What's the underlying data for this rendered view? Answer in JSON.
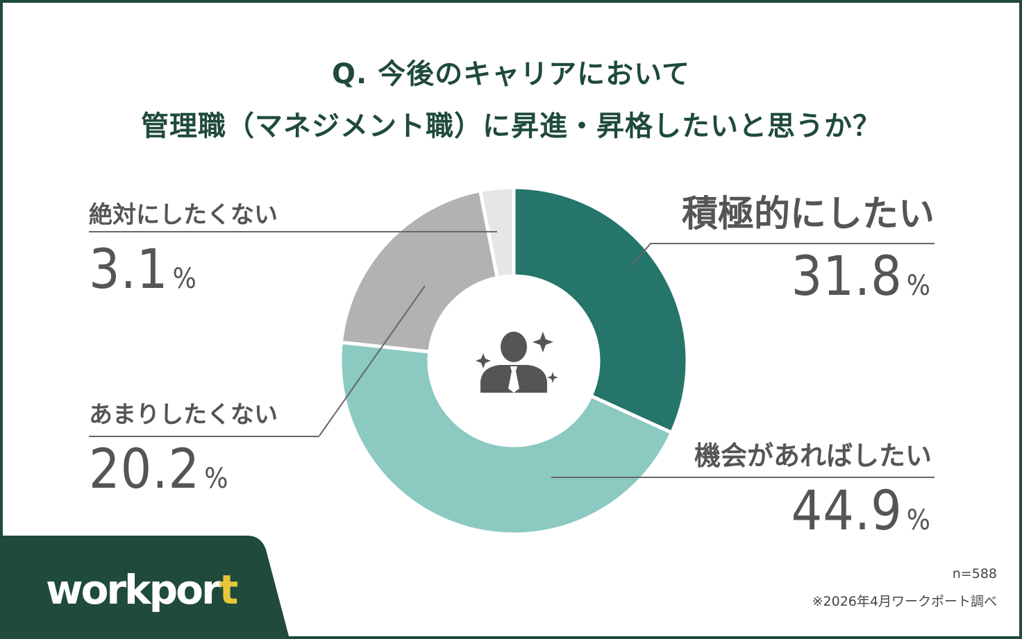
{
  "title_line1": "Q. 今後のキャリアにおいて",
  "title_line2": "管理職（マネジメント職）に昇進・昇格したいと思うか？",
  "chart_data": {
    "type": "pie",
    "donut": true,
    "start_angle_deg": 0,
    "direction": "clockwise",
    "slices": [
      {
        "label": "積極的にしたい",
        "value": 31.8,
        "value_text": "31.8",
        "color": "#25756a"
      },
      {
        "label": "機会があればしたい",
        "value": 44.9,
        "value_text": "44.9",
        "color": "#8bc9c1"
      },
      {
        "label": "あまりしたくない",
        "value": 20.2,
        "value_text": "20.2",
        "color": "#b2b2b2"
      },
      {
        "label": "絶対にしたくない",
        "value": 3.1,
        "value_text": "3.1",
        "color": "#e6e6e6"
      }
    ],
    "unit": "%"
  },
  "center_icon": "businessman-with-sparkles-icon",
  "sample_size": "n=588",
  "source_note": "※2026年4月ワークポート調べ",
  "logo_text_main": "workpor",
  "logo_text_accent": "t",
  "brand_color": "#1f4a3c",
  "accent_color": "#e8c53a"
}
